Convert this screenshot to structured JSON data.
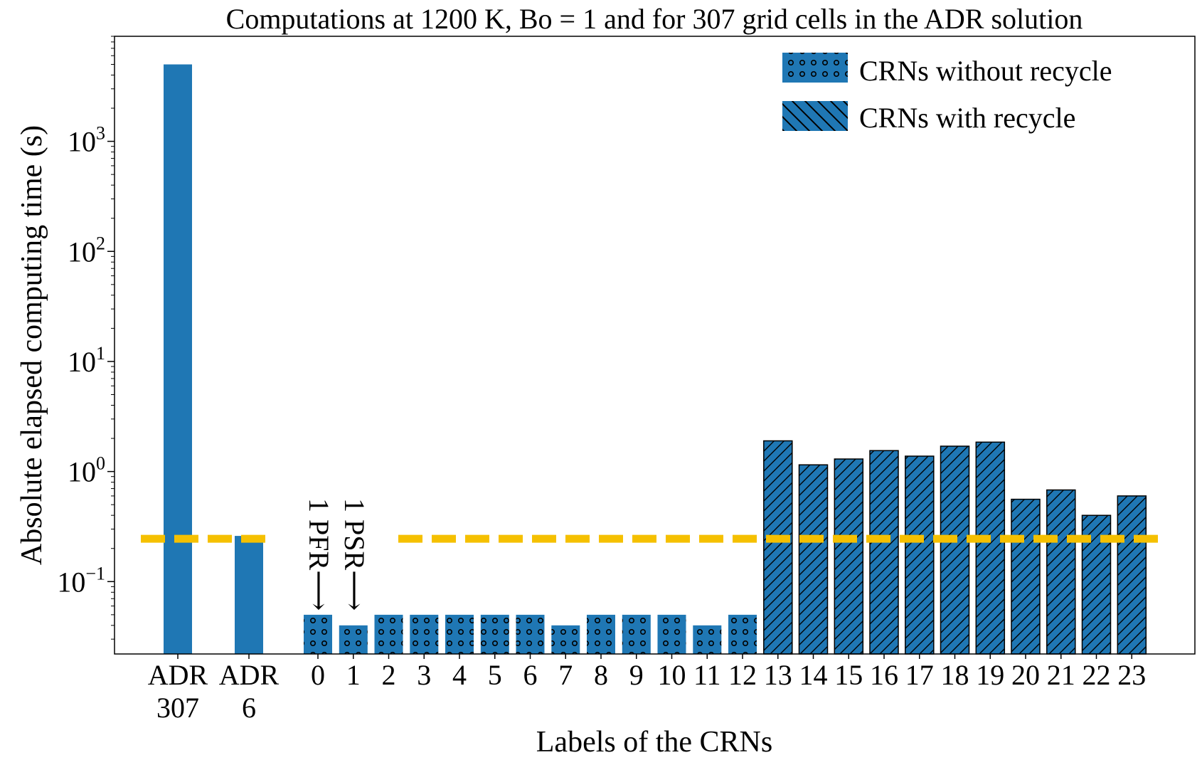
{
  "chart_data": {
    "type": "bar",
    "title": "Computations at 1200 K, Bo = 1 and for 307 grid cells in the ADR solution",
    "xlabel": "Labels of the CRNs",
    "ylabel": "Absolute elapsed computing time (s)",
    "yscale": "log",
    "ylim": [
      0.022,
      9000
    ],
    "yticks": [
      {
        "value": 0.1,
        "base": "10",
        "exp": "−1"
      },
      {
        "value": 1,
        "base": "10",
        "exp": "0"
      },
      {
        "value": 10,
        "base": "10",
        "exp": "1"
      },
      {
        "value": 100,
        "base": "10",
        "exp": "2"
      },
      {
        "value": 1000,
        "base": "10",
        "exp": "3"
      }
    ],
    "bars": [
      {
        "label": "ADR",
        "label2": "307",
        "value": 5000,
        "pattern": "solid"
      },
      {
        "label": "ADR",
        "label2": "6",
        "value": 0.26,
        "pattern": "solid"
      },
      {
        "label": "0",
        "value": 0.05,
        "pattern": "dots"
      },
      {
        "label": "1",
        "value": 0.04,
        "pattern": "dots"
      },
      {
        "label": "2",
        "value": 0.05,
        "pattern": "dots"
      },
      {
        "label": "3",
        "value": 0.05,
        "pattern": "dots"
      },
      {
        "label": "4",
        "value": 0.05,
        "pattern": "dots"
      },
      {
        "label": "5",
        "value": 0.05,
        "pattern": "dots"
      },
      {
        "label": "6",
        "value": 0.05,
        "pattern": "dots"
      },
      {
        "label": "7",
        "value": 0.04,
        "pattern": "dots"
      },
      {
        "label": "8",
        "value": 0.05,
        "pattern": "dots"
      },
      {
        "label": "9",
        "value": 0.05,
        "pattern": "dots"
      },
      {
        "label": "10",
        "value": 0.05,
        "pattern": "dots"
      },
      {
        "label": "11",
        "value": 0.04,
        "pattern": "dots"
      },
      {
        "label": "12",
        "value": 0.05,
        "pattern": "dots"
      },
      {
        "label": "13",
        "value": 1.9,
        "pattern": "hatch"
      },
      {
        "label": "14",
        "value": 1.15,
        "pattern": "hatch"
      },
      {
        "label": "15",
        "value": 1.3,
        "pattern": "hatch"
      },
      {
        "label": "16",
        "value": 1.55,
        "pattern": "hatch"
      },
      {
        "label": "17",
        "value": 1.38,
        "pattern": "hatch"
      },
      {
        "label": "18",
        "value": 1.7,
        "pattern": "hatch"
      },
      {
        "label": "19",
        "value": 1.85,
        "pattern": "hatch"
      },
      {
        "label": "20",
        "value": 0.56,
        "pattern": "hatch"
      },
      {
        "label": "21",
        "value": 0.68,
        "pattern": "hatch"
      },
      {
        "label": "22",
        "value": 0.4,
        "pattern": "hatch"
      },
      {
        "label": "23",
        "value": 0.6,
        "pattern": "hatch"
      }
    ],
    "reference_line": {
      "value": 0.245,
      "style": "dashed",
      "color": "#f5c000"
    },
    "annotations": [
      {
        "text": "1 PFR⟶",
        "bar_index": 2
      },
      {
        "text": "1 PSR⟶",
        "bar_index": 3
      }
    ],
    "legend": {
      "placement": "top-right",
      "entries": [
        {
          "label": "CRNs without recycle",
          "pattern": "dots"
        },
        {
          "label": "CRNs with recycle",
          "pattern": "hatch"
        }
      ]
    },
    "colors": {
      "bar": "#1f77b4",
      "reference": "#f5c000"
    }
  }
}
